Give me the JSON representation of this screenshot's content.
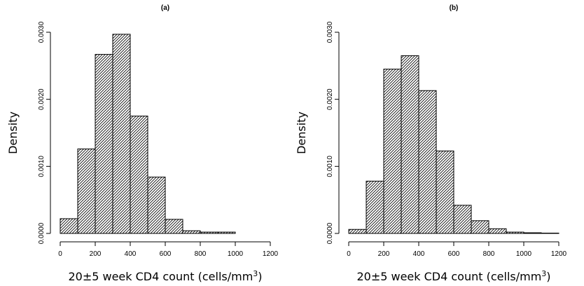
{
  "chart_data": [
    {
      "type": "bar",
      "title": "(a)",
      "xlabel_prefix": "20±5 week CD4 count (cells/mm",
      "xlabel_sup": "3",
      "xlabel_suffix": ")",
      "ylabel": "Density",
      "xlim": [
        0,
        1200
      ],
      "ylim": [
        0,
        0.003
      ],
      "xticks": [
        "0",
        "200",
        "400",
        "600",
        "800",
        "1000",
        "1200"
      ],
      "yticks": [
        "0.0000",
        "0.0010",
        "0.0020",
        "0.0030"
      ],
      "bin_width": 100,
      "bin_starts": [
        0,
        100,
        200,
        300,
        400,
        500,
        600,
        700,
        800,
        900
      ],
      "values": [
        0.00022,
        0.00126,
        0.00267,
        0.00297,
        0.00175,
        0.00084,
        0.00021,
        4e-05,
        2e-05,
        2e-05
      ]
    },
    {
      "type": "bar",
      "title": "(b)",
      "xlabel_prefix": "20±5 week CD4 count (cells/mm",
      "xlabel_sup": "3",
      "xlabel_suffix": ")",
      "ylabel": "Density",
      "xlim": [
        0,
        1200
      ],
      "ylim": [
        0,
        0.003
      ],
      "xticks": [
        "0",
        "200",
        "400",
        "600",
        "800",
        "1000",
        "1200"
      ],
      "yticks": [
        "0.0000",
        "0.0010",
        "0.0020",
        "0.0030"
      ],
      "bin_width": 100,
      "bin_starts": [
        0,
        100,
        200,
        300,
        400,
        500,
        600,
        700,
        800,
        900,
        1000,
        1100
      ],
      "values": [
        6e-05,
        0.00078,
        0.00245,
        0.00265,
        0.00213,
        0.00123,
        0.00042,
        0.00019,
        7e-05,
        2e-05,
        1e-05,
        5e-06
      ]
    }
  ]
}
